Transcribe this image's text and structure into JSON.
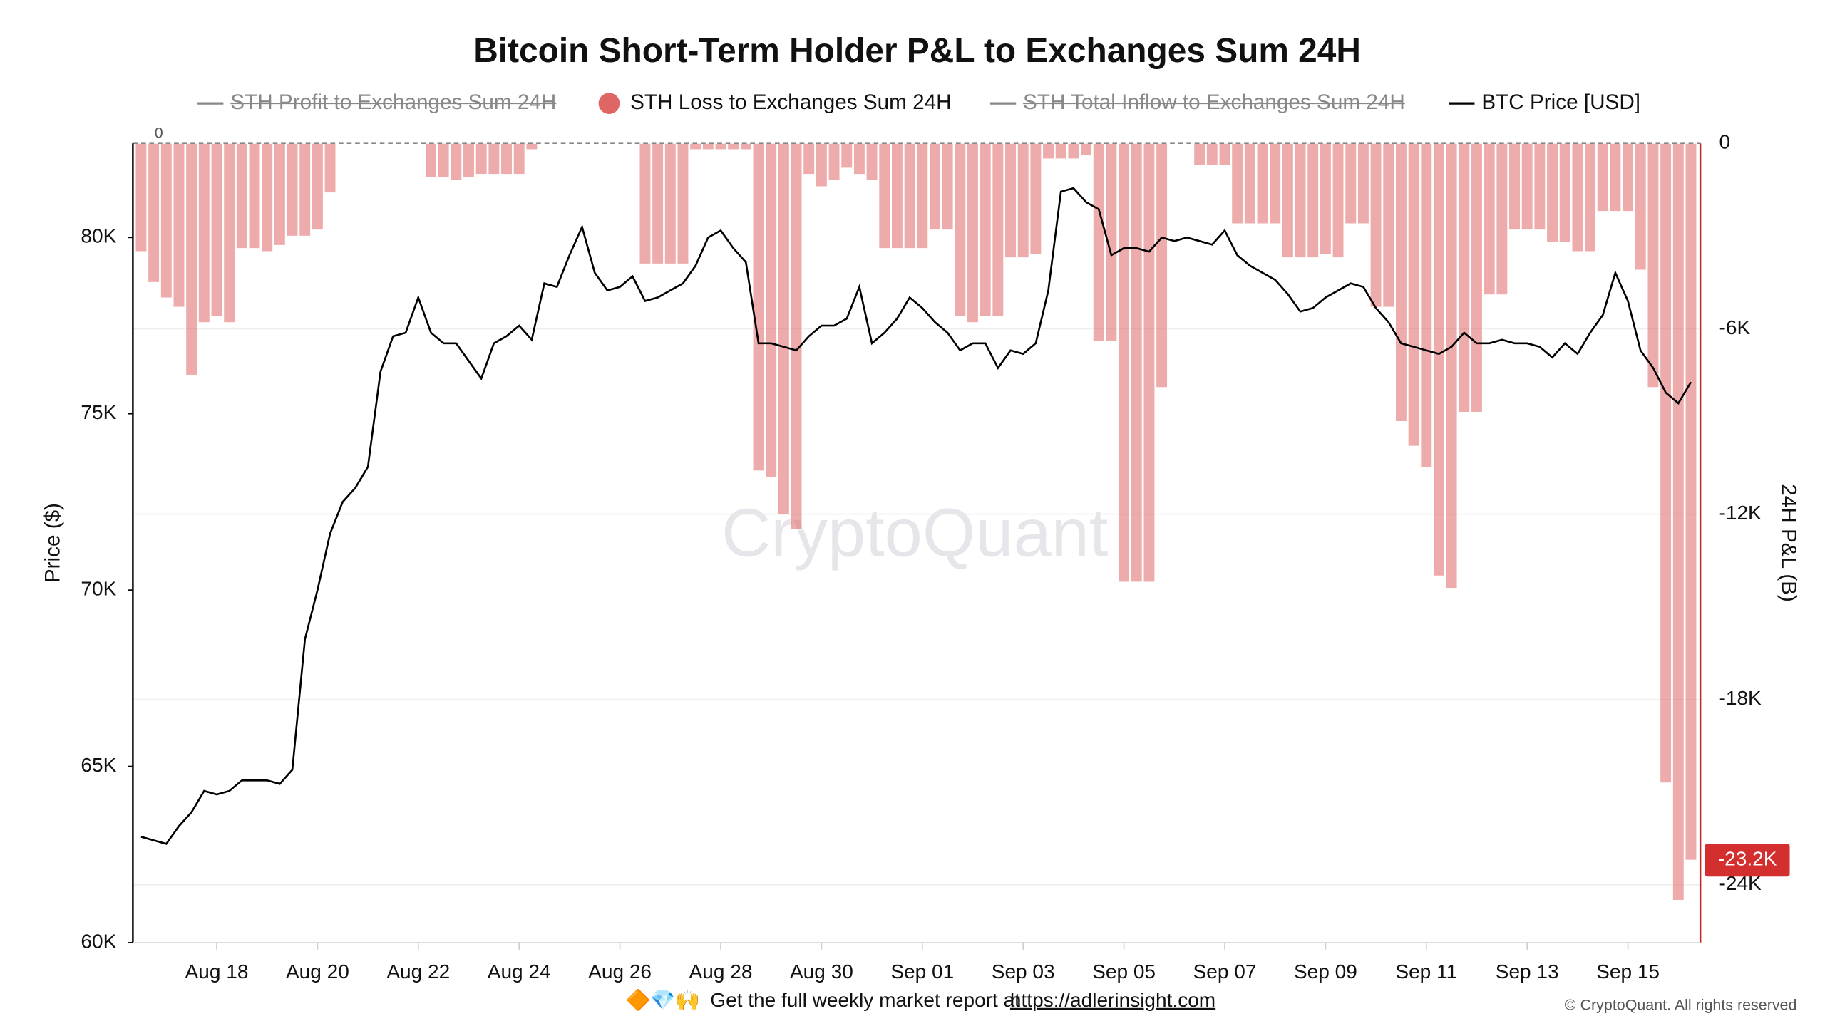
{
  "chart_data": {
    "type": "bar_line",
    "title": "Bitcoin Short-Term Holder P&L to Exchanges Sum 24H",
    "categories": [
      null,
      null,
      null,
      null,
      null,
      null,
      "Aug 18",
      null,
      null,
      null,
      null,
      null,
      null,
      null,
      "Aug 20",
      null,
      null,
      null,
      null,
      null,
      null,
      null,
      "Aug 22",
      null,
      null,
      null,
      null,
      null,
      null,
      null,
      "Aug 24",
      null,
      null,
      null,
      null,
      null,
      null,
      null,
      "Aug 26",
      null,
      null,
      null,
      null,
      null,
      null,
      null,
      "Aug 28",
      null,
      null,
      null,
      null,
      null,
      null,
      null,
      "Aug 30",
      null,
      null,
      null,
      null,
      null,
      null,
      null,
      "Sep 01",
      null,
      null,
      null,
      null,
      null,
      null,
      null,
      "Sep 03",
      null,
      null,
      null,
      null,
      null,
      null,
      null,
      "Sep 05",
      null,
      null,
      null,
      null,
      null,
      null,
      null,
      "Sep 07",
      null,
      null,
      null,
      null,
      null,
      null,
      null,
      "Sep 09",
      null,
      null,
      null,
      null,
      null,
      null,
      null,
      "Sep 11",
      null,
      null,
      null,
      null,
      null,
      null,
      null,
      "Sep 13",
      null,
      null,
      null,
      null,
      null,
      null,
      null,
      "Sep 15",
      null,
      null,
      null,
      null,
      null
    ],
    "series": [
      {
        "name": "STH Profit to Exchanges Sum 24H",
        "color": "#888888",
        "hidden": true
      },
      {
        "name": "STH Loss to Exchanges Sum 24H",
        "color": "#e06666",
        "axis": "y2",
        "values": [
          -3500,
          -4500,
          -5000,
          -5300,
          -7500,
          -5800,
          -5600,
          -5800,
          -3400,
          -3400,
          -3500,
          -3300,
          -3000,
          -3000,
          -2800,
          -1600,
          0,
          0,
          0,
          0,
          0,
          0,
          0,
          -1100,
          -1100,
          -1200,
          -1100,
          -1000,
          -1000,
          -1000,
          -1000,
          -200,
          0,
          0,
          0,
          0,
          0,
          0,
          0,
          0,
          -3900,
          -3900,
          -3900,
          -3900,
          -200,
          -200,
          -200,
          -200,
          -200,
          -10600,
          -10800,
          -12000,
          -12500,
          -1000,
          -1400,
          -1200,
          -800,
          -1000,
          -1200,
          -3400,
          -3400,
          -3400,
          -3400,
          -2800,
          -2800,
          -5600,
          -5800,
          -5600,
          -5600,
          -3700,
          -3700,
          -3600,
          -500,
          -500,
          -500,
          -400,
          -6400,
          -6400,
          -14200,
          -14200,
          -14200,
          -7900,
          0,
          0,
          -700,
          -700,
          -700,
          -2600,
          -2600,
          -2600,
          -2600,
          -3700,
          -3700,
          -3700,
          -3600,
          -3700,
          -2600,
          -2600,
          -5300,
          -5300,
          -9000,
          -9800,
          -10500,
          -14000,
          -14400,
          -8700,
          -8700,
          -4900,
          -4900,
          -2800,
          -2800,
          -2800,
          -3200,
          -3200,
          -3500,
          -3500,
          -2200,
          -2200,
          -2200,
          -4100,
          -7900,
          -20700,
          -24500,
          -23200
        ],
        "value_labels": [
          null,
          null,
          null,
          null,
          null,
          null,
          null,
          null,
          null,
          null,
          null,
          null,
          null,
          null,
          null,
          null,
          null,
          null,
          null,
          null,
          null,
          null,
          null,
          null,
          null,
          null,
          null,
          null,
          null,
          null,
          null,
          null,
          null,
          null,
          null,
          null,
          null,
          null,
          null,
          null,
          null,
          null,
          null,
          null,
          null,
          null,
          null,
          null,
          null,
          null,
          null,
          null,
          null,
          null,
          null,
          null,
          null,
          null,
          null,
          null,
          null,
          null,
          null,
          null,
          null,
          null,
          null,
          null,
          null,
          null,
          null,
          null,
          null,
          null,
          null,
          null,
          null,
          null,
          null,
          null,
          null,
          null,
          null,
          null,
          null,
          null,
          null,
          null,
          null,
          null,
          null,
          null,
          null,
          null,
          null,
          null,
          null,
          null,
          null,
          null,
          null,
          null,
          null,
          null,
          null,
          null,
          null,
          null,
          null,
          null,
          null,
          null,
          null,
          null,
          null,
          null,
          null,
          null,
          null,
          null,
          null,
          null,
          null,
          "-23.2K"
        ]
      },
      {
        "name": "STH Total Inflow to  Exchanges Sum 24H",
        "color": "#888888",
        "hidden": true
      },
      {
        "name": "BTC Price [USD]",
        "color": "#000000",
        "axis": "y",
        "values": [
          63000,
          62900,
          62800,
          63300,
          63700,
          64300,
          64200,
          64300,
          64600,
          64600,
          64600,
          64500,
          64900,
          68600,
          70000,
          71600,
          72500,
          72900,
          73500,
          76200,
          77200,
          77300,
          78300,
          77300,
          77000,
          77000,
          76500,
          76000,
          77000,
          77200,
          77500,
          77100,
          78700,
          78600,
          79500,
          80300,
          79000,
          78500,
          78600,
          78900,
          78200,
          78300,
          78500,
          78700,
          79200,
          80000,
          80200,
          79700,
          79300,
          77000,
          77000,
          76900,
          76800,
          77200,
          77500,
          77500,
          77700,
          78600,
          77000,
          77300,
          77700,
          78300,
          78000,
          77600,
          77300,
          76800,
          77000,
          77000,
          76300,
          76800,
          76700,
          77000,
          78500,
          81300,
          81400,
          81000,
          80800,
          79500,
          79700,
          79700,
          79600,
          80000,
          79900,
          80000,
          79900,
          79800,
          80200,
          79500,
          79200,
          79000,
          78800,
          78400,
          77900,
          78000,
          78300,
          78500,
          78700,
          78600,
          78000,
          77600,
          77000,
          76900,
          76800,
          76700,
          76900,
          77300,
          77000,
          77000,
          77100,
          77000,
          77000,
          76900,
          76600,
          77000,
          76700,
          77300,
          77800,
          79000,
          78200,
          76800,
          76300,
          75600,
          75300,
          75900
        ]
      }
    ],
    "ylabel": "Price ($)",
    "y2label": "24H P&L (B)",
    "ylim": [
      60000,
      82670
    ],
    "yticks": [
      {
        "value": 60000,
        "label": "60K"
      },
      {
        "value": 65000,
        "label": "65K"
      },
      {
        "value": 70000,
        "label": "70K"
      },
      {
        "value": 75000,
        "label": "75K"
      },
      {
        "value": 80000,
        "label": "80K"
      }
    ],
    "y2lim": [
      -25870,
      0
    ],
    "y2ticks": [
      0,
      {
        "value": -6000,
        "label": "-6K"
      },
      {
        "value": -12000,
        "label": "-12K"
      },
      {
        "value": -18000,
        "label": "-18K"
      },
      {
        "value": -24000,
        "label": "-24K"
      }
    ],
    "reference_line": 0,
    "grid": true,
    "watermark": "CryptoQuant",
    "footer": {
      "emoji": "🔶💎🙌",
      "text": "Get the full weekly market report at",
      "link": "https://adlerinsight.com"
    },
    "copyright": "© CryptoQuant. All rights reserved"
  }
}
